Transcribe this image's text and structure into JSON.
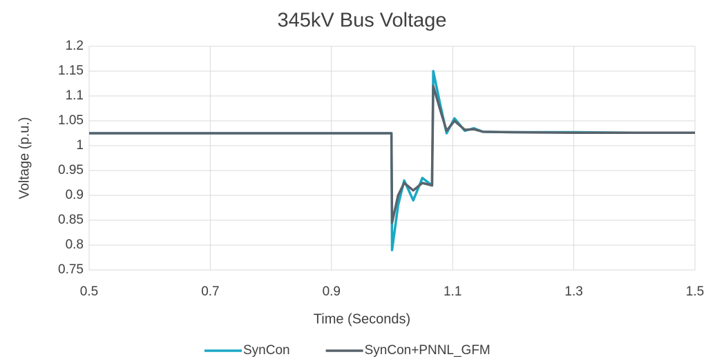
{
  "chart_data": {
    "type": "line",
    "title": "345kV Bus Voltage",
    "x_label": "Time (Seconds)",
    "y_label": "Voltage (p.u.)",
    "x": [
      0.5,
      0.999,
      1.0,
      1.01,
      1.02,
      1.035,
      1.05,
      1.066,
      1.068,
      1.08,
      1.09,
      1.103,
      1.12,
      1.135,
      1.15,
      1.2,
      1.3,
      1.4,
      1.5
    ],
    "series": [
      {
        "name": "SynCon",
        "color": "#1aa8c4",
        "values": [
          1.025,
          1.025,
          0.79,
          0.88,
          0.93,
          0.89,
          0.935,
          0.92,
          1.15,
          1.08,
          1.025,
          1.055,
          1.03,
          1.035,
          1.028,
          1.027,
          1.027,
          1.026,
          1.026
        ]
      },
      {
        "name": "SynCon+PNNL_GFM",
        "color": "#59636b",
        "values": [
          1.025,
          1.025,
          0.845,
          0.9,
          0.925,
          0.91,
          0.925,
          0.92,
          1.12,
          1.07,
          1.03,
          1.05,
          1.032,
          1.033,
          1.028,
          1.027,
          1.026,
          1.026,
          1.026
        ]
      }
    ],
    "xlim": [
      0.5,
      1.5
    ],
    "xticks": [
      0.5,
      0.7,
      0.9,
      1.1,
      1.3,
      1.5
    ],
    "ylim": [
      0.75,
      1.2
    ],
    "yticks": [
      0.75,
      0.8,
      0.85,
      0.9,
      0.95,
      1,
      1.05,
      1.1,
      1.15,
      1.2
    ],
    "grid": true,
    "legend": "bottom"
  }
}
